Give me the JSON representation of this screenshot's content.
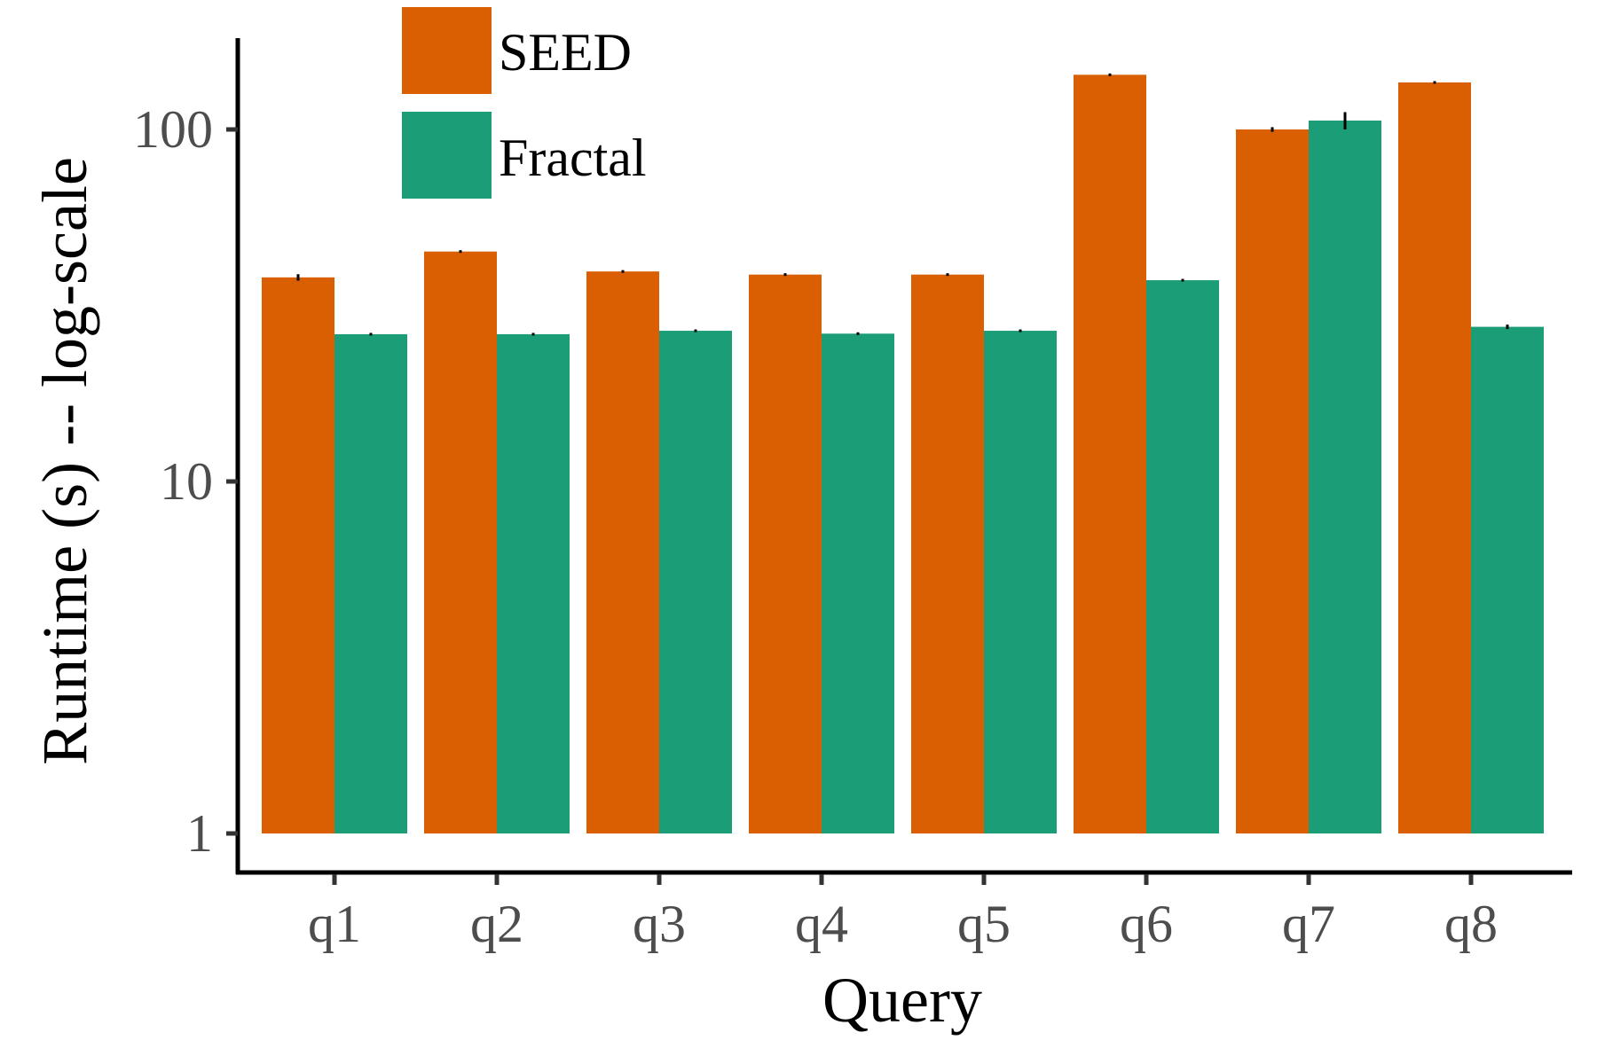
{
  "chart_data": {
    "type": "bar",
    "xlabel": "Query",
    "ylabel": "Runtime (s) -- log-scale",
    "yscale": "log",
    "ylim": [
      0.8,
      200
    ],
    "yticks": [
      1,
      10,
      100
    ],
    "ytick_labels": [
      "1",
      "10",
      "100"
    ],
    "categories": [
      "q1",
      "q2",
      "q3",
      "q4",
      "q5",
      "q6",
      "q7",
      "q8"
    ],
    "series": [
      {
        "name": "SEED",
        "color": "#D95F02",
        "values": [
          38,
          45,
          39.5,
          38.7,
          38.7,
          143,
          100,
          136
        ],
        "error": [
          0.8,
          0.3,
          0.3,
          0.3,
          0.3,
          0.5,
          1.5,
          0.5
        ]
      },
      {
        "name": "Fractal",
        "color": "#1B9E77",
        "values": [
          26.2,
          26.2,
          26.8,
          26.3,
          26.8,
          37.3,
          106,
          27.5
        ],
        "error": [
          0.2,
          0.2,
          0.2,
          0.2,
          0.2,
          0.3,
          6,
          0.4
        ]
      }
    ],
    "bar_baseline": 1,
    "legend_position": "top-left",
    "grid": false
  }
}
